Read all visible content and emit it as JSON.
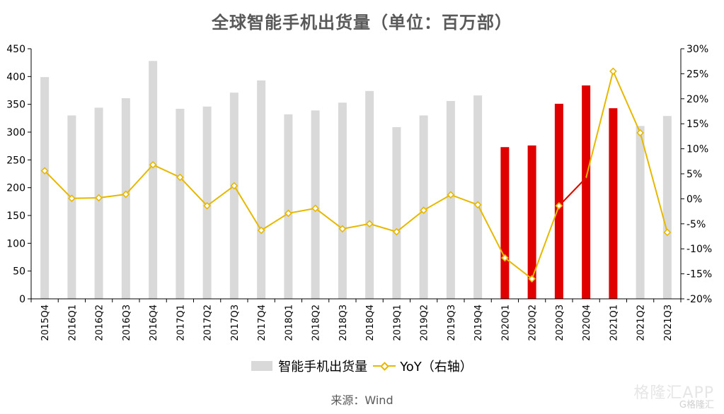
{
  "title": "全球智能手机出货量（单位：百万部）",
  "legend": {
    "bar_label": "智能手机出货量",
    "line_label": "YoY（右轴）"
  },
  "source": "来源：Wind",
  "watermark": {
    "main": "格隆汇APP",
    "sub": "G格隆汇"
  },
  "colors": {
    "bar_default": "#d9d9d9",
    "bar_highlight": "#e00000",
    "line": "#e6b800",
    "line_highlight_segment": "#e00000",
    "axis": "#000000",
    "title": "#595959"
  },
  "chart_data": {
    "type": "bar",
    "title": "全球智能手机出货量（单位：百万部）",
    "xlabel": "",
    "ylabel": "",
    "y2label": "",
    "categories": [
      "2015Q4",
      "2016Q1",
      "2016Q2",
      "2016Q3",
      "2016Q4",
      "2017Q1",
      "2017Q2",
      "2017Q3",
      "2017Q4",
      "2018Q1",
      "2018Q2",
      "2018Q3",
      "2018Q4",
      "2019Q1",
      "2019Q2",
      "2019Q3",
      "2019Q4",
      "2020Q1",
      "2020Q2",
      "2020Q3",
      "2020Q4",
      "2021Q1",
      "2021Q2",
      "2021Q3"
    ],
    "series": [
      {
        "name": "智能手机出货量",
        "type": "bar",
        "axis": "left",
        "values": [
          399,
          330,
          344,
          361,
          428,
          342,
          346,
          371,
          393,
          332,
          339,
          353,
          374,
          309,
          330,
          356,
          366,
          273,
          276,
          351,
          384,
          343,
          311,
          329
        ],
        "highlighted_indices": [
          17,
          18,
          19,
          20,
          21
        ]
      },
      {
        "name": "YoY（右轴）",
        "type": "line",
        "axis": "right",
        "unit": "%",
        "values": [
          5.6,
          0.1,
          0.2,
          0.9,
          6.8,
          4.3,
          -1.4,
          2.6,
          -6.3,
          -2.9,
          -1.9,
          -6.0,
          -5.0,
          -6.6,
          -2.3,
          0.8,
          -1.2,
          -11.8,
          -16.0,
          -1.4,
          4.2,
          25.5,
          13.2,
          -6.7
        ]
      }
    ],
    "ylim": [
      0,
      450
    ],
    "yticks": [
      0,
      50,
      100,
      150,
      200,
      250,
      300,
      350,
      400,
      450
    ],
    "y2lim": [
      -20,
      30
    ],
    "y2ticks": [
      "-20%",
      "-15%",
      "-10%",
      "-5%",
      "0%",
      "5%",
      "10%",
      "15%",
      "20%",
      "25%",
      "30%"
    ],
    "grid": false,
    "legend_position": "bottom"
  }
}
